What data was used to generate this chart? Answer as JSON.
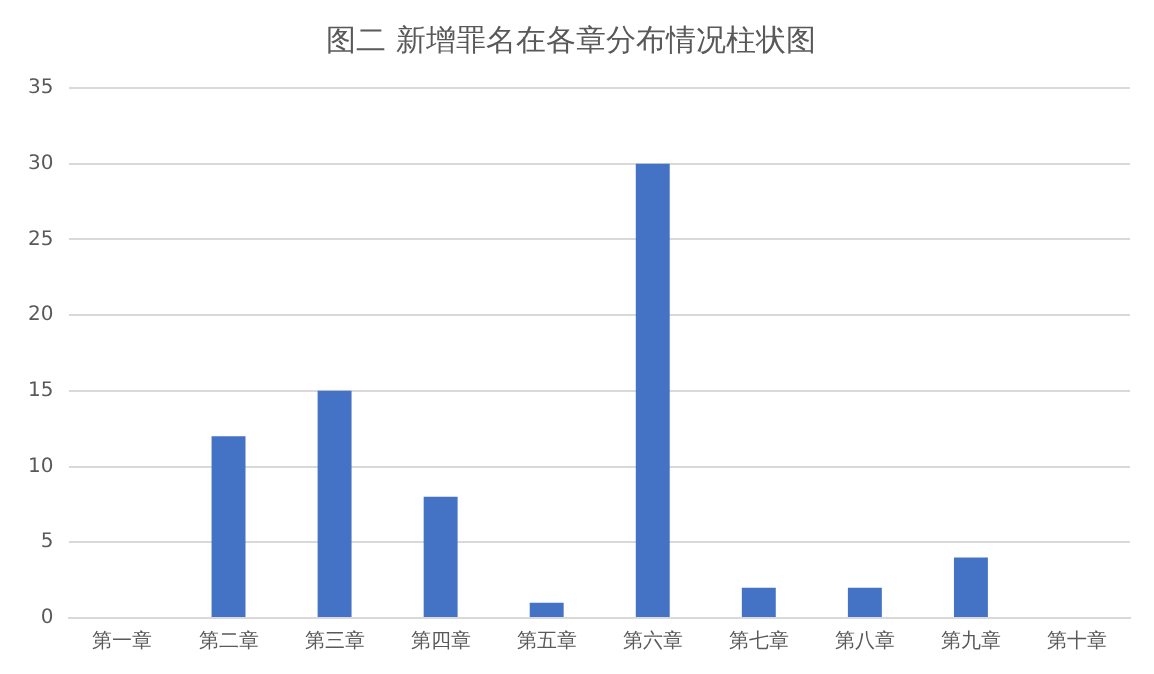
{
  "chart_data": {
    "type": "bar",
    "title": "图二 新增罪名在各章分布情况柱状图",
    "categories": [
      "第一章",
      "第二章",
      "第三章",
      "第四章",
      "第五章",
      "第六章",
      "第七章",
      "第八章",
      "第九章",
      "第十章"
    ],
    "values": [
      0,
      12,
      15,
      8,
      1,
      30,
      2,
      2,
      4,
      0
    ],
    "color": "#4472c4",
    "ylim": [
      0,
      35
    ],
    "yticks": [
      0,
      5,
      10,
      15,
      20,
      25,
      30,
      35
    ],
    "grid": "y",
    "legend": false
  }
}
